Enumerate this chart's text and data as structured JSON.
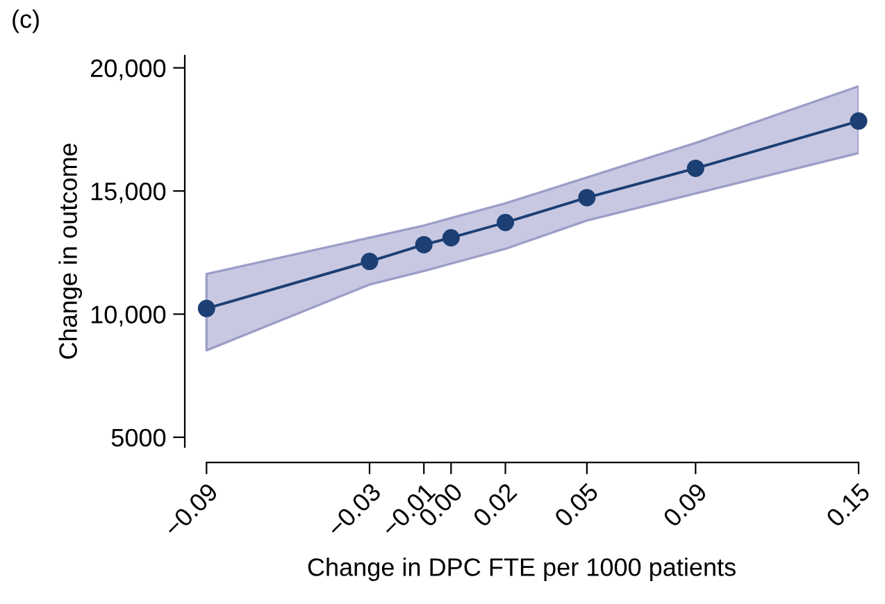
{
  "chart_data": {
    "type": "line",
    "title": "(c)",
    "xlabel": "Change in DPC FTE per 1000 patients",
    "ylabel": "Change in outcome",
    "x": [
      -0.09,
      -0.03,
      -0.01,
      0.0,
      0.02,
      0.05,
      0.09,
      0.15
    ],
    "series": [
      {
        "color": "#1c3f74",
        "values": [
          10230,
          12140,
          12820,
          13100,
          13720,
          14730,
          15920,
          17840
        ],
        "lower": [
          8530,
          11200,
          11750,
          12050,
          12650,
          13800,
          14900,
          16540
        ],
        "upper": [
          11630,
          13100,
          13600,
          13900,
          14500,
          15550,
          16950,
          19250
        ]
      }
    ],
    "marker": "circle",
    "xlim": [
      -0.098,
      0.15
    ],
    "ylim": [
      4600,
      20500
    ],
    "xticks": [
      {
        "value": -0.09,
        "label": "−0.09"
      },
      {
        "value": -0.03,
        "label": "−0.03"
      },
      {
        "value": -0.01,
        "label": "−0.01"
      },
      {
        "value": 0.0,
        "label": "0.00"
      },
      {
        "value": 0.02,
        "label": "0.02"
      },
      {
        "value": 0.05,
        "label": "0.05"
      },
      {
        "value": 0.09,
        "label": "0.09"
      },
      {
        "value": 0.15,
        "label": "0.15"
      }
    ],
    "yticks": [
      {
        "value": 5000,
        "label": "5000"
      },
      {
        "value": 10000,
        "label": "10,000"
      },
      {
        "value": 15000,
        "label": "15,000"
      },
      {
        "value": 20000,
        "label": "20,000"
      }
    ]
  }
}
